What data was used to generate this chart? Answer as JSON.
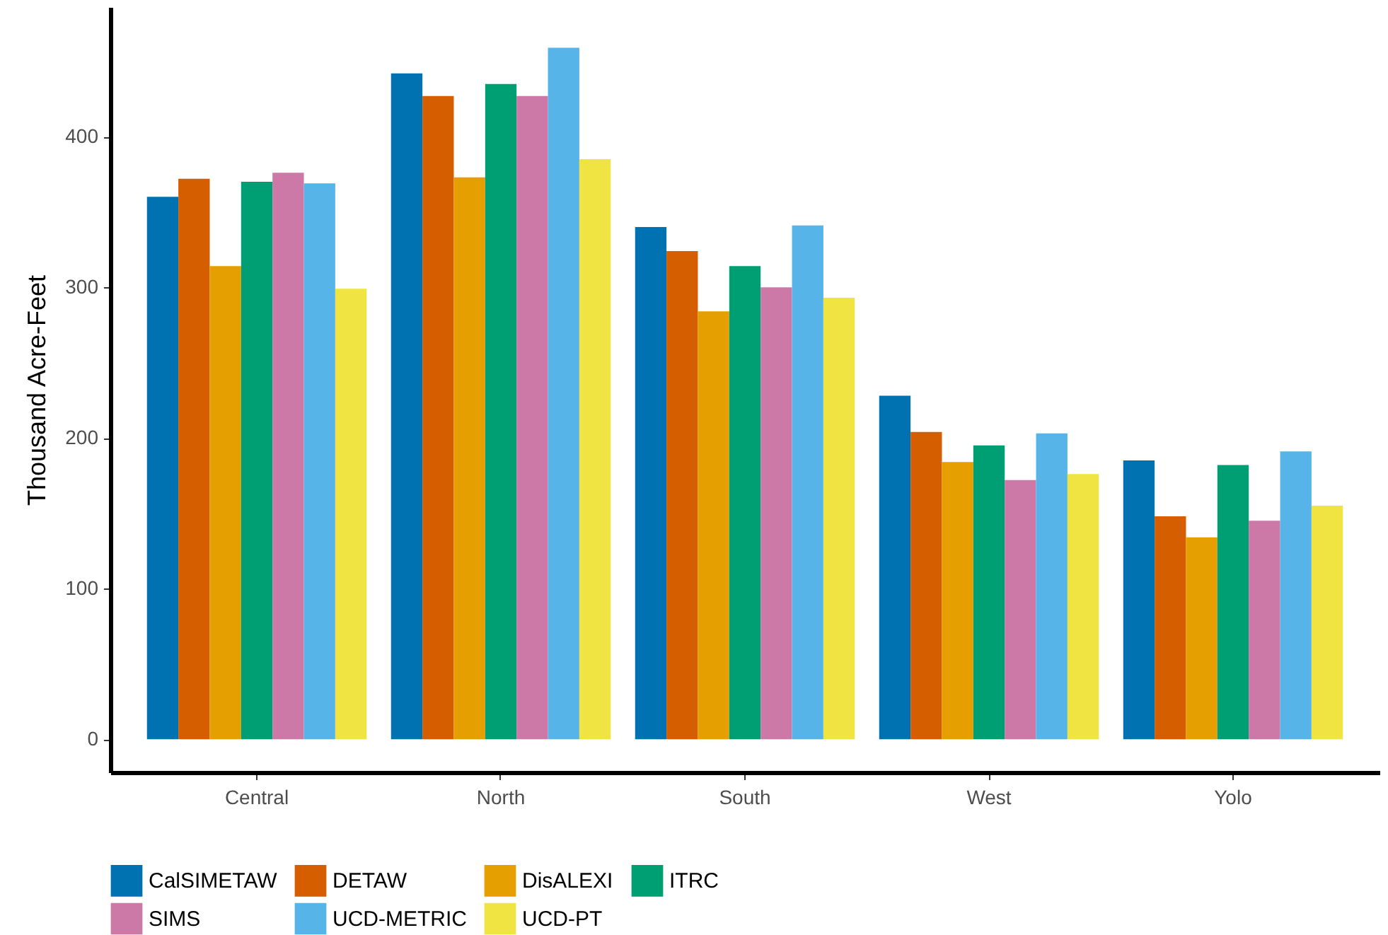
{
  "chart_data": {
    "type": "bar",
    "ylabel": "Thousand Acre-Feet",
    "categories": [
      "Central",
      "North",
      "South",
      "West",
      "Yolo"
    ],
    "series": [
      {
        "name": "CalSIMETAW",
        "color": "#0072b2",
        "values": [
          360,
          442,
          340,
          228,
          185
        ]
      },
      {
        "name": "DETAW",
        "color": "#d55e00",
        "values": [
          372,
          427,
          324,
          204,
          148
        ]
      },
      {
        "name": "DisALEXI",
        "color": "#e69f00",
        "values": [
          314,
          373,
          284,
          184,
          134
        ]
      },
      {
        "name": "ITRC",
        "color": "#009e73",
        "values": [
          370,
          435,
          314,
          195,
          182
        ]
      },
      {
        "name": "SIMS",
        "color": "#cc79a7",
        "values": [
          376,
          427,
          300,
          172,
          145
        ]
      },
      {
        "name": "UCD-METRIC",
        "color": "#56b4e9",
        "values": [
          369,
          459,
          341,
          203,
          191
        ]
      },
      {
        "name": "UCD-PT",
        "color": "#f0e442",
        "values": [
          299,
          385,
          293,
          176,
          155
        ]
      }
    ],
    "ylim": [
      -22,
      486
    ],
    "yticks": [
      0,
      100,
      200,
      300,
      400
    ],
    "grid": false,
    "legend": "bottom"
  }
}
